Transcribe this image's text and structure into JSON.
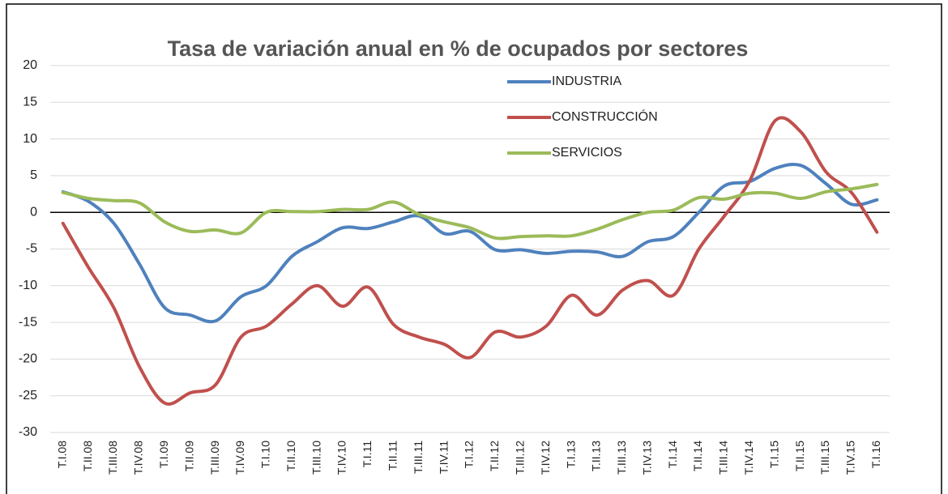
{
  "chart_data": {
    "type": "line",
    "title": "Tasa de variación anual en % de ocupados por sectores",
    "categories": [
      "T.I.08",
      "T.II.08",
      "T.III.08",
      "T.IV.08",
      "T.I.09",
      "T.II.09",
      "T.III.09",
      "T.IV.09",
      "T.I.10",
      "T.II.10",
      "T.III.10",
      "T.IV.10",
      "T.I.11",
      "T.II.11",
      "T.III.11",
      "T.IV.11",
      "T.I.12",
      "T.II.12",
      "T.III.12",
      "T.IV.12",
      "T.I.13",
      "T.II.13",
      "T.III.13",
      "T.IV.13",
      "T.I.14",
      "T.II.14",
      "T.III.14",
      "T.IV.14",
      "T.I.15",
      "T.II.15",
      "T.III.15",
      "T.IV.15",
      "T.I.16"
    ],
    "series": [
      {
        "name": "INDUSTRIA",
        "color": "#4f81bd",
        "values": [
          2.8,
          1.5,
          -1.5,
          -7,
          -13,
          -14,
          -14.8,
          -11.5,
          -10,
          -6,
          -4,
          -2.1,
          -2.2,
          -1.3,
          -0.5,
          -2.9,
          -2.6,
          -5.1,
          -5.1,
          -5.6,
          -5.3,
          -5.4,
          -6,
          -4,
          -3.3,
          0,
          3.6,
          4.2,
          6,
          6.4,
          3.9,
          1.1,
          1.7
        ]
      },
      {
        "name": "CONSTRUCCIÓN",
        "color": "#c0504d",
        "values": [
          -1.5,
          -7.5,
          -13,
          -21,
          -26,
          -24.6,
          -23.5,
          -17,
          -15.5,
          -12.5,
          -10,
          -12.8,
          -10.2,
          -15.3,
          -17,
          -18,
          -19.8,
          -16.3,
          -17,
          -15.5,
          -11.3,
          -14,
          -10.6,
          -9.3,
          -11.3,
          -5,
          -0.5,
          4.3,
          12.5,
          11,
          5.5,
          2.7,
          -2.7
        ]
      },
      {
        "name": "SERVICIOS",
        "color": "#9bbb59",
        "values": [
          2.7,
          1.9,
          1.6,
          1.3,
          -1.3,
          -2.6,
          -2.4,
          -2.8,
          0,
          0.1,
          0.1,
          0.4,
          0.4,
          1.4,
          -0.3,
          -1.3,
          -2.1,
          -3.5,
          -3.3,
          -3.2,
          -3.2,
          -2.3,
          -1,
          0,
          0.3,
          2,
          1.8,
          2.6,
          2.6,
          1.9,
          2.8,
          3.2,
          3.8
        ]
      }
    ],
    "ylim": [
      -30,
      20
    ],
    "yticks": [
      -30,
      -25,
      -20,
      -15,
      -10,
      -5,
      0,
      5,
      10,
      15,
      20
    ],
    "grid": true
  }
}
